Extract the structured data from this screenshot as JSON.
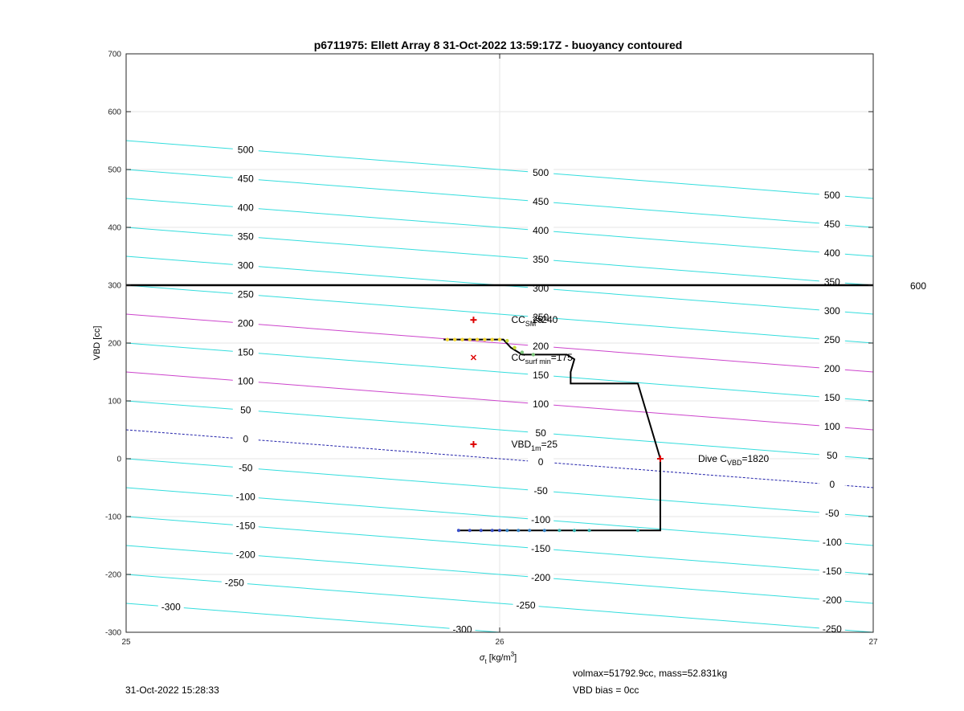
{
  "title": "p6711975: Ellett Array 8 31-Oct-2022 13:59:17Z - buoyancy contoured",
  "footer": {
    "timestamp": "31-Oct-2022 15:28:33",
    "volmax": "volmax=51792.9cc, mass=52.831kg",
    "vbd_bias": "VBD bias = 0cc"
  },
  "colors": {
    "contour_cyan": "#33dddd",
    "contour_magenta": "#cc44cc",
    "contour_zero": "#2222aa",
    "limit_line": "#000000",
    "marker_red": "#dd0000",
    "grid": "#e6e6e6"
  },
  "chart_data": {
    "type": "line",
    "title": "p6711975: Ellett Array 8 31-Oct-2022 13:59:17Z - buoyancy contoured",
    "xlabel_symbol": "σ",
    "xlabel_sub": "t",
    "xlabel_unit": " [kg/m",
    "xlabel_sup": "3",
    "xlabel_close": "]",
    "ylabel": "VBD [cc]",
    "xlim": [
      25,
      27
    ],
    "ylim": [
      -300,
      700
    ],
    "xticks": [
      25,
      26,
      27
    ],
    "yticks": [
      -300,
      -200,
      -100,
      0,
      100,
      200,
      300,
      400,
      500,
      600,
      700
    ],
    "grid": true,
    "contour_slope_cc_per_sigma": -50,
    "contours": [
      {
        "level": -300,
        "intercept": -250
      },
      {
        "level": -250,
        "intercept": -200
      },
      {
        "level": -200,
        "intercept": -150
      },
      {
        "level": -150,
        "intercept": -100
      },
      {
        "level": -100,
        "intercept": -50
      },
      {
        "level": -50,
        "intercept": 0
      },
      {
        "level": 0,
        "intercept": 50,
        "style": "zero"
      },
      {
        "level": 50,
        "intercept": 100
      },
      {
        "level": 100,
        "intercept": 150,
        "style": "magenta"
      },
      {
        "level": 150,
        "intercept": 200
      },
      {
        "level": 200,
        "intercept": 250,
        "style": "magenta"
      },
      {
        "level": 250,
        "intercept": 300
      },
      {
        "level": 300,
        "intercept": 350
      },
      {
        "level": 350,
        "intercept": 400
      },
      {
        "level": 400,
        "intercept": 450
      },
      {
        "level": 450,
        "intercept": 500
      },
      {
        "level": 500,
        "intercept": 550
      }
    ],
    "contour_label_positions": [
      {
        "sigma": 25.32,
        "level": 500
      },
      {
        "sigma": 25.32,
        "level": 450
      },
      {
        "sigma": 25.32,
        "level": 400
      },
      {
        "sigma": 25.32,
        "level": 350
      },
      {
        "sigma": 25.32,
        "level": 300
      },
      {
        "sigma": 25.32,
        "level": 250
      },
      {
        "sigma": 25.32,
        "level": 200
      },
      {
        "sigma": 25.32,
        "level": 150
      },
      {
        "sigma": 25.32,
        "level": 100
      },
      {
        "sigma": 25.32,
        "level": 50
      },
      {
        "sigma": 25.32,
        "level": 0
      },
      {
        "sigma": 25.32,
        "level": -50
      },
      {
        "sigma": 25.32,
        "level": -100
      },
      {
        "sigma": 25.32,
        "level": -150
      },
      {
        "sigma": 25.32,
        "level": -200
      },
      {
        "sigma": 25.29,
        "level": -250
      },
      {
        "sigma": 25.12,
        "level": -300
      },
      {
        "sigma": 26.11,
        "level": 500
      },
      {
        "sigma": 26.11,
        "level": 450
      },
      {
        "sigma": 26.11,
        "level": 400
      },
      {
        "sigma": 26.11,
        "level": 350
      },
      {
        "sigma": 26.11,
        "level": 300
      },
      {
        "sigma": 26.11,
        "level": 250
      },
      {
        "sigma": 26.11,
        "level": 200
      },
      {
        "sigma": 26.11,
        "level": 150
      },
      {
        "sigma": 26.11,
        "level": 100
      },
      {
        "sigma": 26.11,
        "level": 50
      },
      {
        "sigma": 26.11,
        "level": 0
      },
      {
        "sigma": 26.11,
        "level": -50
      },
      {
        "sigma": 26.11,
        "level": -100
      },
      {
        "sigma": 26.11,
        "level": -150
      },
      {
        "sigma": 26.11,
        "level": -200
      },
      {
        "sigma": 26.07,
        "level": -250
      },
      {
        "sigma": 25.9,
        "level": -300
      },
      {
        "sigma": 26.89,
        "level": 500
      },
      {
        "sigma": 26.89,
        "level": 450
      },
      {
        "sigma": 26.89,
        "level": 400
      },
      {
        "sigma": 26.89,
        "level": 350
      },
      {
        "sigma": 26.89,
        "level": 300
      },
      {
        "sigma": 26.89,
        "level": 250
      },
      {
        "sigma": 26.89,
        "level": 200
      },
      {
        "sigma": 26.89,
        "level": 150
      },
      {
        "sigma": 26.89,
        "level": 100
      },
      {
        "sigma": 26.89,
        "level": 50
      },
      {
        "sigma": 26.89,
        "level": 0
      },
      {
        "sigma": 26.89,
        "level": -50
      },
      {
        "sigma": 26.89,
        "level": -100
      },
      {
        "sigma": 26.89,
        "level": -150
      },
      {
        "sigma": 26.89,
        "level": -200
      },
      {
        "sigma": 26.89,
        "level": -250
      }
    ],
    "vbd_limit": {
      "y": 300,
      "label": "600"
    },
    "dive_track": {
      "x": [
        25.85,
        26.01,
        26.03,
        26.06,
        26.12,
        26.18,
        26.2,
        26.19,
        26.19,
        26.37,
        26.43,
        26.43,
        25.89
      ],
      "y": [
        206,
        206,
        192,
        180,
        180,
        180,
        172,
        150,
        130,
        130,
        0,
        -124,
        -124
      ]
    },
    "surface_points": {
      "x": [
        25.86,
        25.88,
        25.9,
        25.92,
        25.94,
        25.96,
        25.98,
        26.0,
        26.02,
        26.04,
        26.06,
        26.09
      ],
      "y": [
        206,
        206,
        206,
        206,
        206,
        206,
        206,
        206,
        204,
        192,
        184,
        180
      ]
    },
    "bottom_points": {
      "x": [
        25.89,
        25.92,
        25.95,
        25.98,
        26.0,
        26.02,
        26.05,
        26.08,
        26.12,
        26.16,
        26.2,
        26.24,
        26.37
      ],
      "y": [
        -124,
        -124,
        -124,
        -124,
        -124,
        -124,
        -124,
        -124,
        -124,
        -124,
        -124,
        -124,
        -124
      ]
    },
    "markers": [
      {
        "x": 25.93,
        "y": 240,
        "symbol": "plus",
        "label": "CC",
        "label_sub": "SM",
        "label_tail": "=240",
        "overlap": "25"
      },
      {
        "x": 25.93,
        "y": 175,
        "symbol": "x",
        "label": "CC",
        "label_sub": "surf min",
        "label_tail": "=175"
      },
      {
        "x": 25.93,
        "y": 25,
        "symbol": "plus",
        "label": "VBD",
        "label_sub": "1m",
        "label_tail": "=25"
      },
      {
        "x": 26.43,
        "y": 0,
        "symbol": "plus",
        "label": "Dive C",
        "label_sub": "VBD",
        "label_tail": "=1820"
      }
    ]
  }
}
